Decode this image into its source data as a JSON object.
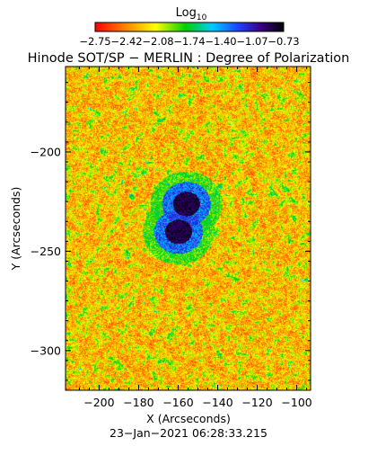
{
  "colorbar": {
    "title": "Log",
    "title_sub": "10",
    "tick_labels": [
      "−2.75",
      "−2.42",
      "−2.08",
      "−1.74",
      "−1.40",
      "−1.07",
      "−0.73"
    ],
    "range": [
      -2.75,
      -0.73
    ]
  },
  "chart_data": {
    "type": "heatmap",
    "title": "Hinode SOT/SP − MERLIN : Degree of Polarization",
    "xlabel": "X (Arcseconds)",
    "ylabel": "Y (Arcseconds)",
    "timestamp": "23−Jan−2021 06:28:33.215",
    "xlim": [
      -217,
      -93
    ],
    "ylim": [
      -320,
      -157
    ],
    "x_ticks": [
      -200,
      -180,
      -160,
      -140,
      -120,
      -100
    ],
    "x_tick_labels": [
      "−200",
      "−180",
      "−160",
      "−140",
      "−120",
      "−100"
    ],
    "y_ticks": [
      -300,
      -250,
      -200
    ],
    "y_tick_labels": [
      "−300",
      "−250",
      "−200"
    ],
    "value_range": [
      -2.75,
      -0.73
    ],
    "colormap_stops": [
      "#ff0000",
      "#ff8a00",
      "#ffff00",
      "#00d000",
      "#00ccff",
      "#2040ff",
      "#3a0080",
      "#000000"
    ],
    "features": [
      {
        "label": "sunspot umbra",
        "x": -156,
        "y": -226,
        "value": -0.73
      },
      {
        "label": "sunspot umbra",
        "x": -160,
        "y": -240,
        "value": -0.73
      }
    ]
  }
}
